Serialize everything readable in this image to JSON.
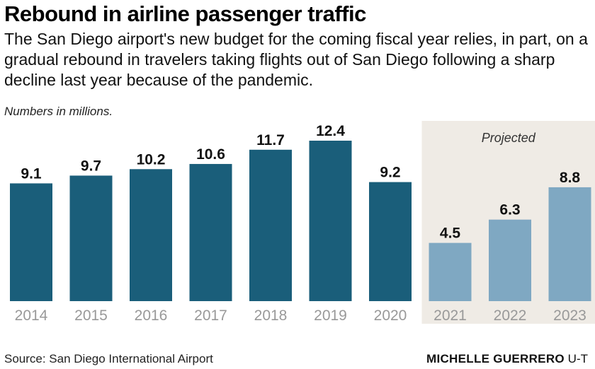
{
  "title": "Rebound in airline passenger traffic",
  "subtitle": "The San Diego airport's new budget for the coming fiscal year relies, in part, on a gradual rebound in travelers taking flights out of San Diego following a sharp decline last year because of the pandemic.",
  "note": "Numbers in millions.",
  "source": "Source: San Diego International Airport",
  "credit_name": "MICHELLE GUERRERO",
  "credit_org": "U-T",
  "colors": {
    "actual": "#1a5e7a",
    "projected": "#7fa8c2",
    "projected_bg": "#efebe5",
    "tick_label": "#999999"
  },
  "chart_data": {
    "type": "bar",
    "title": "Rebound in airline passenger traffic",
    "unit": "Numbers in millions.",
    "categories": [
      "2014",
      "2015",
      "2016",
      "2017",
      "2018",
      "2019",
      "2020",
      "2021",
      "2022",
      "2023"
    ],
    "values": [
      9.1,
      9.7,
      10.2,
      10.6,
      11.7,
      12.4,
      9.2,
      4.5,
      6.3,
      8.8
    ],
    "data_labels": [
      "9.1",
      "9.7",
      "10.2",
      "10.6",
      "11.7",
      "12.4",
      "9.2",
      "4.5",
      "6.3",
      "8.8"
    ],
    "projected": [
      false,
      false,
      false,
      false,
      false,
      false,
      false,
      true,
      true,
      true
    ],
    "projected_label": "Projected",
    "ylim": [
      0,
      12.4
    ],
    "grid": false,
    "legend": "none"
  }
}
